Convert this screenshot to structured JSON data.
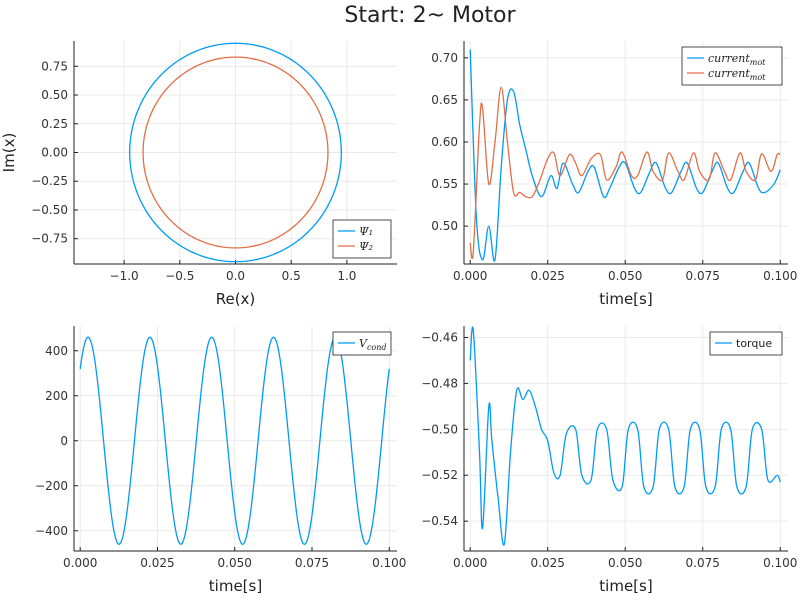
{
  "title": "Start: 2~ Motor",
  "colors": {
    "series1": "#009AFA",
    "series2": "#E36F47",
    "grid": "#e9e9e9",
    "axis": "#222222"
  },
  "chart_data": [
    {
      "id": "flux",
      "type": "line",
      "xlabel": "Re(x)",
      "ylabel": "Im(x)",
      "xlim": [
        -1.45,
        1.45
      ],
      "ylim": [
        -0.97,
        0.97
      ],
      "xticks": [
        -1.0,
        -0.5,
        0.0,
        0.5,
        1.0
      ],
      "xtick_labels": [
        "−1.0",
        "−0.5",
        "0.0",
        "0.5",
        "1.0"
      ],
      "yticks": [
        -0.75,
        -0.5,
        -0.25,
        0.0,
        0.25,
        0.5,
        0.75
      ],
      "ytick_labels": [
        "−0.75",
        "−0.50",
        "−0.25",
        "0.00",
        "0.25",
        "0.50",
        "0.75"
      ],
      "grid": true,
      "legend": "bottom-right",
      "series": [
        {
          "name": "Ψ₁",
          "shape": "circle",
          "radius": 0.95,
          "color": "#009AFA"
        },
        {
          "name": "Ψ₂",
          "shape": "circle",
          "radius": 0.83,
          "color": "#E36F47"
        }
      ]
    },
    {
      "id": "current",
      "type": "line",
      "xlabel": "time[s]",
      "ylabel": "",
      "xlim": [
        -0.002,
        0.1025
      ],
      "ylim": [
        0.455,
        0.72
      ],
      "xticks": [
        0.0,
        0.025,
        0.05,
        0.075,
        0.1
      ],
      "xtick_labels": [
        "0.000",
        "0.025",
        "0.050",
        "0.075",
        "0.100"
      ],
      "yticks": [
        0.5,
        0.55,
        0.6,
        0.65,
        0.7
      ],
      "ytick_labels": [
        "0.50",
        "0.55",
        "0.60",
        "0.65",
        "0.70"
      ],
      "grid": true,
      "legend": "top-right",
      "series": [
        {
          "name": "current_mot",
          "color": "#009AFA",
          "x": [
            0.0,
            0.002,
            0.004,
            0.006,
            0.008,
            0.01,
            0.012,
            0.014,
            0.016,
            0.018,
            0.02,
            0.023,
            0.026,
            0.028,
            0.03,
            0.033,
            0.035,
            0.038,
            0.04,
            0.043,
            0.045,
            0.048,
            0.05,
            0.053,
            0.055,
            0.058,
            0.06,
            0.063,
            0.065,
            0.068,
            0.07,
            0.073,
            0.075,
            0.078,
            0.08,
            0.083,
            0.085,
            0.088,
            0.09,
            0.093,
            0.095,
            0.098,
            0.1
          ],
          "y": [
            0.71,
            0.51,
            0.46,
            0.5,
            0.46,
            0.57,
            0.65,
            0.66,
            0.62,
            0.59,
            0.56,
            0.535,
            0.56,
            0.545,
            0.575,
            0.55,
            0.54,
            0.565,
            0.57,
            0.535,
            0.545,
            0.57,
            0.575,
            0.545,
            0.54,
            0.565,
            0.575,
            0.545,
            0.54,
            0.565,
            0.575,
            0.545,
            0.54,
            0.565,
            0.575,
            0.545,
            0.54,
            0.565,
            0.575,
            0.545,
            0.54,
            0.55,
            0.567
          ]
        },
        {
          "name": "current_mot",
          "color": "#E36F47",
          "x": [
            0.0,
            0.001,
            0.003,
            0.004,
            0.006,
            0.008,
            0.01,
            0.012,
            0.014,
            0.016,
            0.018,
            0.02,
            0.022,
            0.025,
            0.027,
            0.029,
            0.032,
            0.034,
            0.036,
            0.039,
            0.042,
            0.044,
            0.047,
            0.049,
            0.052,
            0.054,
            0.057,
            0.059,
            0.062,
            0.064,
            0.067,
            0.069,
            0.072,
            0.074,
            0.077,
            0.079,
            0.082,
            0.084,
            0.087,
            0.089,
            0.092,
            0.094,
            0.097,
            0.099,
            0.1
          ],
          "y": [
            0.48,
            0.47,
            0.62,
            0.64,
            0.55,
            0.6,
            0.665,
            0.6,
            0.54,
            0.54,
            0.535,
            0.535,
            0.55,
            0.58,
            0.587,
            0.56,
            0.585,
            0.575,
            0.56,
            0.58,
            0.585,
            0.555,
            0.57,
            0.588,
            0.56,
            0.56,
            0.588,
            0.565,
            0.555,
            0.587,
            0.565,
            0.555,
            0.587,
            0.565,
            0.555,
            0.587,
            0.565,
            0.555,
            0.587,
            0.565,
            0.555,
            0.586,
            0.565,
            0.585,
            0.585
          ]
        }
      ]
    },
    {
      "id": "voltage",
      "type": "line",
      "xlabel": "time[s]",
      "ylabel": "",
      "xlim": [
        -0.002,
        0.1025
      ],
      "ylim": [
        -490,
        510
      ],
      "xticks": [
        0.0,
        0.025,
        0.05,
        0.075,
        0.1
      ],
      "xtick_labels": [
        "0.000",
        "0.025",
        "0.050",
        "0.075",
        "0.100"
      ],
      "yticks": [
        -400,
        -200,
        0,
        200,
        400
      ],
      "ytick_labels": [
        "−400",
        "−200",
        "0",
        "200",
        "400"
      ],
      "grid": true,
      "legend": "top-right",
      "series": [
        {
          "name": "V_cond",
          "color": "#009AFA",
          "sine": {
            "amplitude": 460,
            "period": 0.02,
            "phase_deg": 44
          }
        }
      ]
    },
    {
      "id": "torque",
      "type": "line",
      "xlabel": "time[s]",
      "ylabel": "",
      "xlim": [
        -0.002,
        0.1025
      ],
      "ylim": [
        -0.553,
        -0.455
      ],
      "xticks": [
        0.0,
        0.025,
        0.05,
        0.075,
        0.1
      ],
      "xtick_labels": [
        "0.000",
        "0.025",
        "0.050",
        "0.075",
        "0.100"
      ],
      "yticks": [
        -0.54,
        -0.52,
        -0.5,
        -0.48,
        -0.46
      ],
      "ytick_labels": [
        "−0.54",
        "−0.52",
        "−0.50",
        "−0.48",
        "−0.46"
      ],
      "grid": true,
      "legend": "top-right",
      "series": [
        {
          "name": "torque",
          "color": "#009AFA",
          "x": [
            0.0,
            0.001,
            0.003,
            0.004,
            0.006,
            0.007,
            0.009,
            0.011,
            0.013,
            0.015,
            0.017,
            0.019,
            0.021,
            0.023,
            0.025,
            0.027,
            0.029,
            0.031,
            0.034,
            0.036,
            0.039,
            0.041,
            0.044,
            0.046,
            0.049,
            0.051,
            0.054,
            0.056,
            0.059,
            0.061,
            0.064,
            0.066,
            0.069,
            0.071,
            0.074,
            0.076,
            0.079,
            0.081,
            0.084,
            0.086,
            0.089,
            0.091,
            0.094,
            0.096,
            0.099,
            0.1
          ],
          "y": [
            -0.47,
            -0.457,
            -0.51,
            -0.543,
            -0.49,
            -0.505,
            -0.53,
            -0.55,
            -0.51,
            -0.483,
            -0.487,
            -0.483,
            -0.49,
            -0.5,
            -0.505,
            -0.519,
            -0.52,
            -0.502,
            -0.5,
            -0.52,
            -0.522,
            -0.5,
            -0.5,
            -0.522,
            -0.525,
            -0.5,
            -0.5,
            -0.525,
            -0.525,
            -0.5,
            -0.5,
            -0.525,
            -0.525,
            -0.5,
            -0.5,
            -0.525,
            -0.525,
            -0.5,
            -0.5,
            -0.525,
            -0.525,
            -0.5,
            -0.5,
            -0.522,
            -0.52,
            -0.523
          ]
        }
      ]
    }
  ]
}
